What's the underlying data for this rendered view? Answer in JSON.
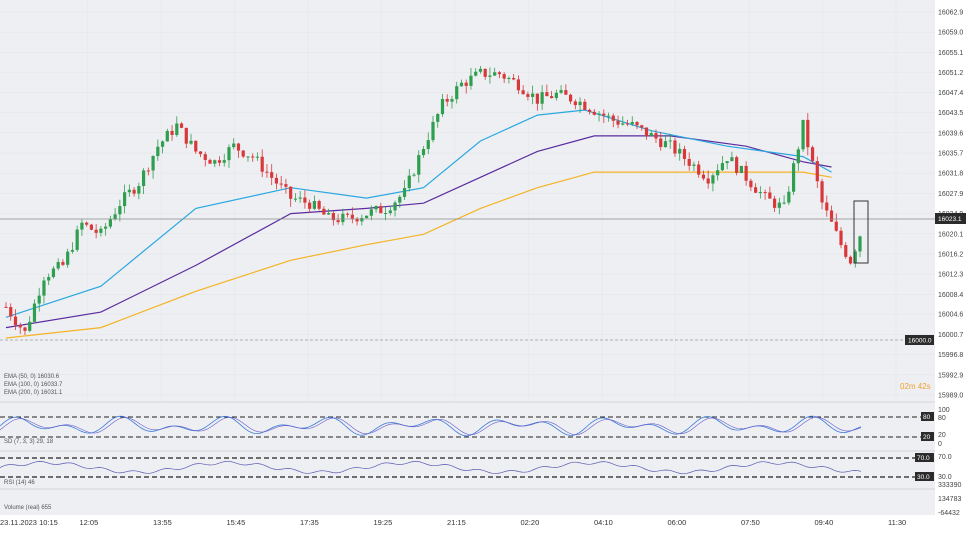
{
  "colors": {
    "up": "#2e9e4f",
    "down": "#d9383a",
    "ema50": "#29a8e0",
    "ema100": "#5b2ca0",
    "ema200": "#f5b325",
    "stoch": "#3a7bd5",
    "rsi": "#5a5ab0",
    "grid": "#e4e6ea",
    "bg": "#edeff2",
    "badge": "#2b2b2b"
  },
  "price_axis": {
    "ticks": [
      "16062.9",
      "16059.0",
      "16055.1",
      "16051.2",
      "16047.4",
      "16043.5",
      "16039.6",
      "16035.7",
      "16031.8",
      "16027.9",
      "16024.0",
      "16020.1",
      "16016.2",
      "16012.3",
      "16008.4",
      "16004.6",
      "16000.7",
      "15996.8",
      "15992.9",
      "15989.0"
    ],
    "current_price": "16023.1",
    "level_line": "16000.0"
  },
  "time_axis": {
    "labels": [
      "23.11.2023 10:15",
      "12:05",
      "13:55",
      "15:45",
      "17:35",
      "19:25",
      "21:15",
      "02:20",
      "04:10",
      "06:00",
      "07:50",
      "09:40",
      "11:30"
    ]
  },
  "timer": "02m 42s",
  "legend": {
    "ema50": "EMA (50, 0) 16030.6",
    "ema100": "EMA (100, 0) 16033.7",
    "ema200": "EMA (200, 0) 16031.1"
  },
  "stochastic": {
    "label": "SD (7, 3, 3) 29, 18",
    "ticks": [
      "100",
      "80",
      "20",
      "0"
    ],
    "upper_badge": "80",
    "lower_badge": "20"
  },
  "rsi": {
    "label": "RSI (14) 46",
    "ticks": [
      "70.0",
      "30.0"
    ],
    "upper_badge": "70.0",
    "lower_badge": "30.0"
  },
  "volume": {
    "label": "Volume (real) 655",
    "ticks": [
      "333390",
      "134783",
      "-64432"
    ]
  },
  "chart_data": {
    "type": "candlestick",
    "y_range": [
      15989.0,
      16062.9
    ],
    "price_series_approx": [
      [
        0,
        16006
      ],
      [
        4,
        16001
      ],
      [
        8,
        16012
      ],
      [
        12,
        16014
      ],
      [
        16,
        16022
      ],
      [
        20,
        16020
      ],
      [
        24,
        16026
      ],
      [
        28,
        16030
      ],
      [
        32,
        16037
      ],
      [
        36,
        16041
      ],
      [
        40,
        16036
      ],
      [
        44,
        16034
      ],
      [
        48,
        16037
      ],
      [
        52,
        16035
      ],
      [
        56,
        16031
      ],
      [
        60,
        16027
      ],
      [
        64,
        16026
      ],
      [
        68,
        16023
      ],
      [
        72,
        16023
      ],
      [
        76,
        16024
      ],
      [
        80,
        16025
      ],
      [
        84,
        16028
      ],
      [
        88,
        16037
      ],
      [
        92,
        16045
      ],
      [
        96,
        16049
      ],
      [
        100,
        16051
      ],
      [
        104,
        16051
      ],
      [
        108,
        16049
      ],
      [
        112,
        16046
      ],
      [
        116,
        16047
      ],
      [
        120,
        16046
      ],
      [
        124,
        16044
      ],
      [
        128,
        16042
      ],
      [
        132,
        16041
      ],
      [
        136,
        16039
      ],
      [
        140,
        16037
      ],
      [
        144,
        16034
      ],
      [
        148,
        16031
      ],
      [
        152,
        16035
      ],
      [
        156,
        16031
      ],
      [
        160,
        16027
      ],
      [
        164,
        16025
      ],
      [
        168,
        16041
      ],
      [
        172,
        16026
      ],
      [
        176,
        16018
      ],
      [
        178,
        16015
      ],
      [
        180,
        16020
      ]
    ],
    "ema_series_approx": {
      "ema50": [
        [
          0,
          16004
        ],
        [
          20,
          16010
        ],
        [
          40,
          16025
        ],
        [
          60,
          16029
        ],
        [
          76,
          16027
        ],
        [
          88,
          16029
        ],
        [
          100,
          16038
        ],
        [
          112,
          16043
        ],
        [
          122,
          16044
        ],
        [
          136,
          16040
        ],
        [
          152,
          16037
        ],
        [
          168,
          16035
        ],
        [
          174,
          16032
        ]
      ],
      "ema100": [
        [
          0,
          16002
        ],
        [
          20,
          16005
        ],
        [
          40,
          16014
        ],
        [
          60,
          16024
        ],
        [
          76,
          16025
        ],
        [
          88,
          16026
        ],
        [
          100,
          16031
        ],
        [
          112,
          16036
        ],
        [
          124,
          16039
        ],
        [
          140,
          16039
        ],
        [
          156,
          16037
        ],
        [
          168,
          16034
        ],
        [
          174,
          16033
        ]
      ],
      "ema200": [
        [
          0,
          16000
        ],
        [
          20,
          16002
        ],
        [
          40,
          16009
        ],
        [
          60,
          16015
        ],
        [
          76,
          16018
        ],
        [
          88,
          16020
        ],
        [
          100,
          16025
        ],
        [
          112,
          16029
        ],
        [
          124,
          16032
        ],
        [
          140,
          16032
        ],
        [
          156,
          16032
        ],
        [
          168,
          16032
        ],
        [
          174,
          16031
        ]
      ]
    }
  }
}
